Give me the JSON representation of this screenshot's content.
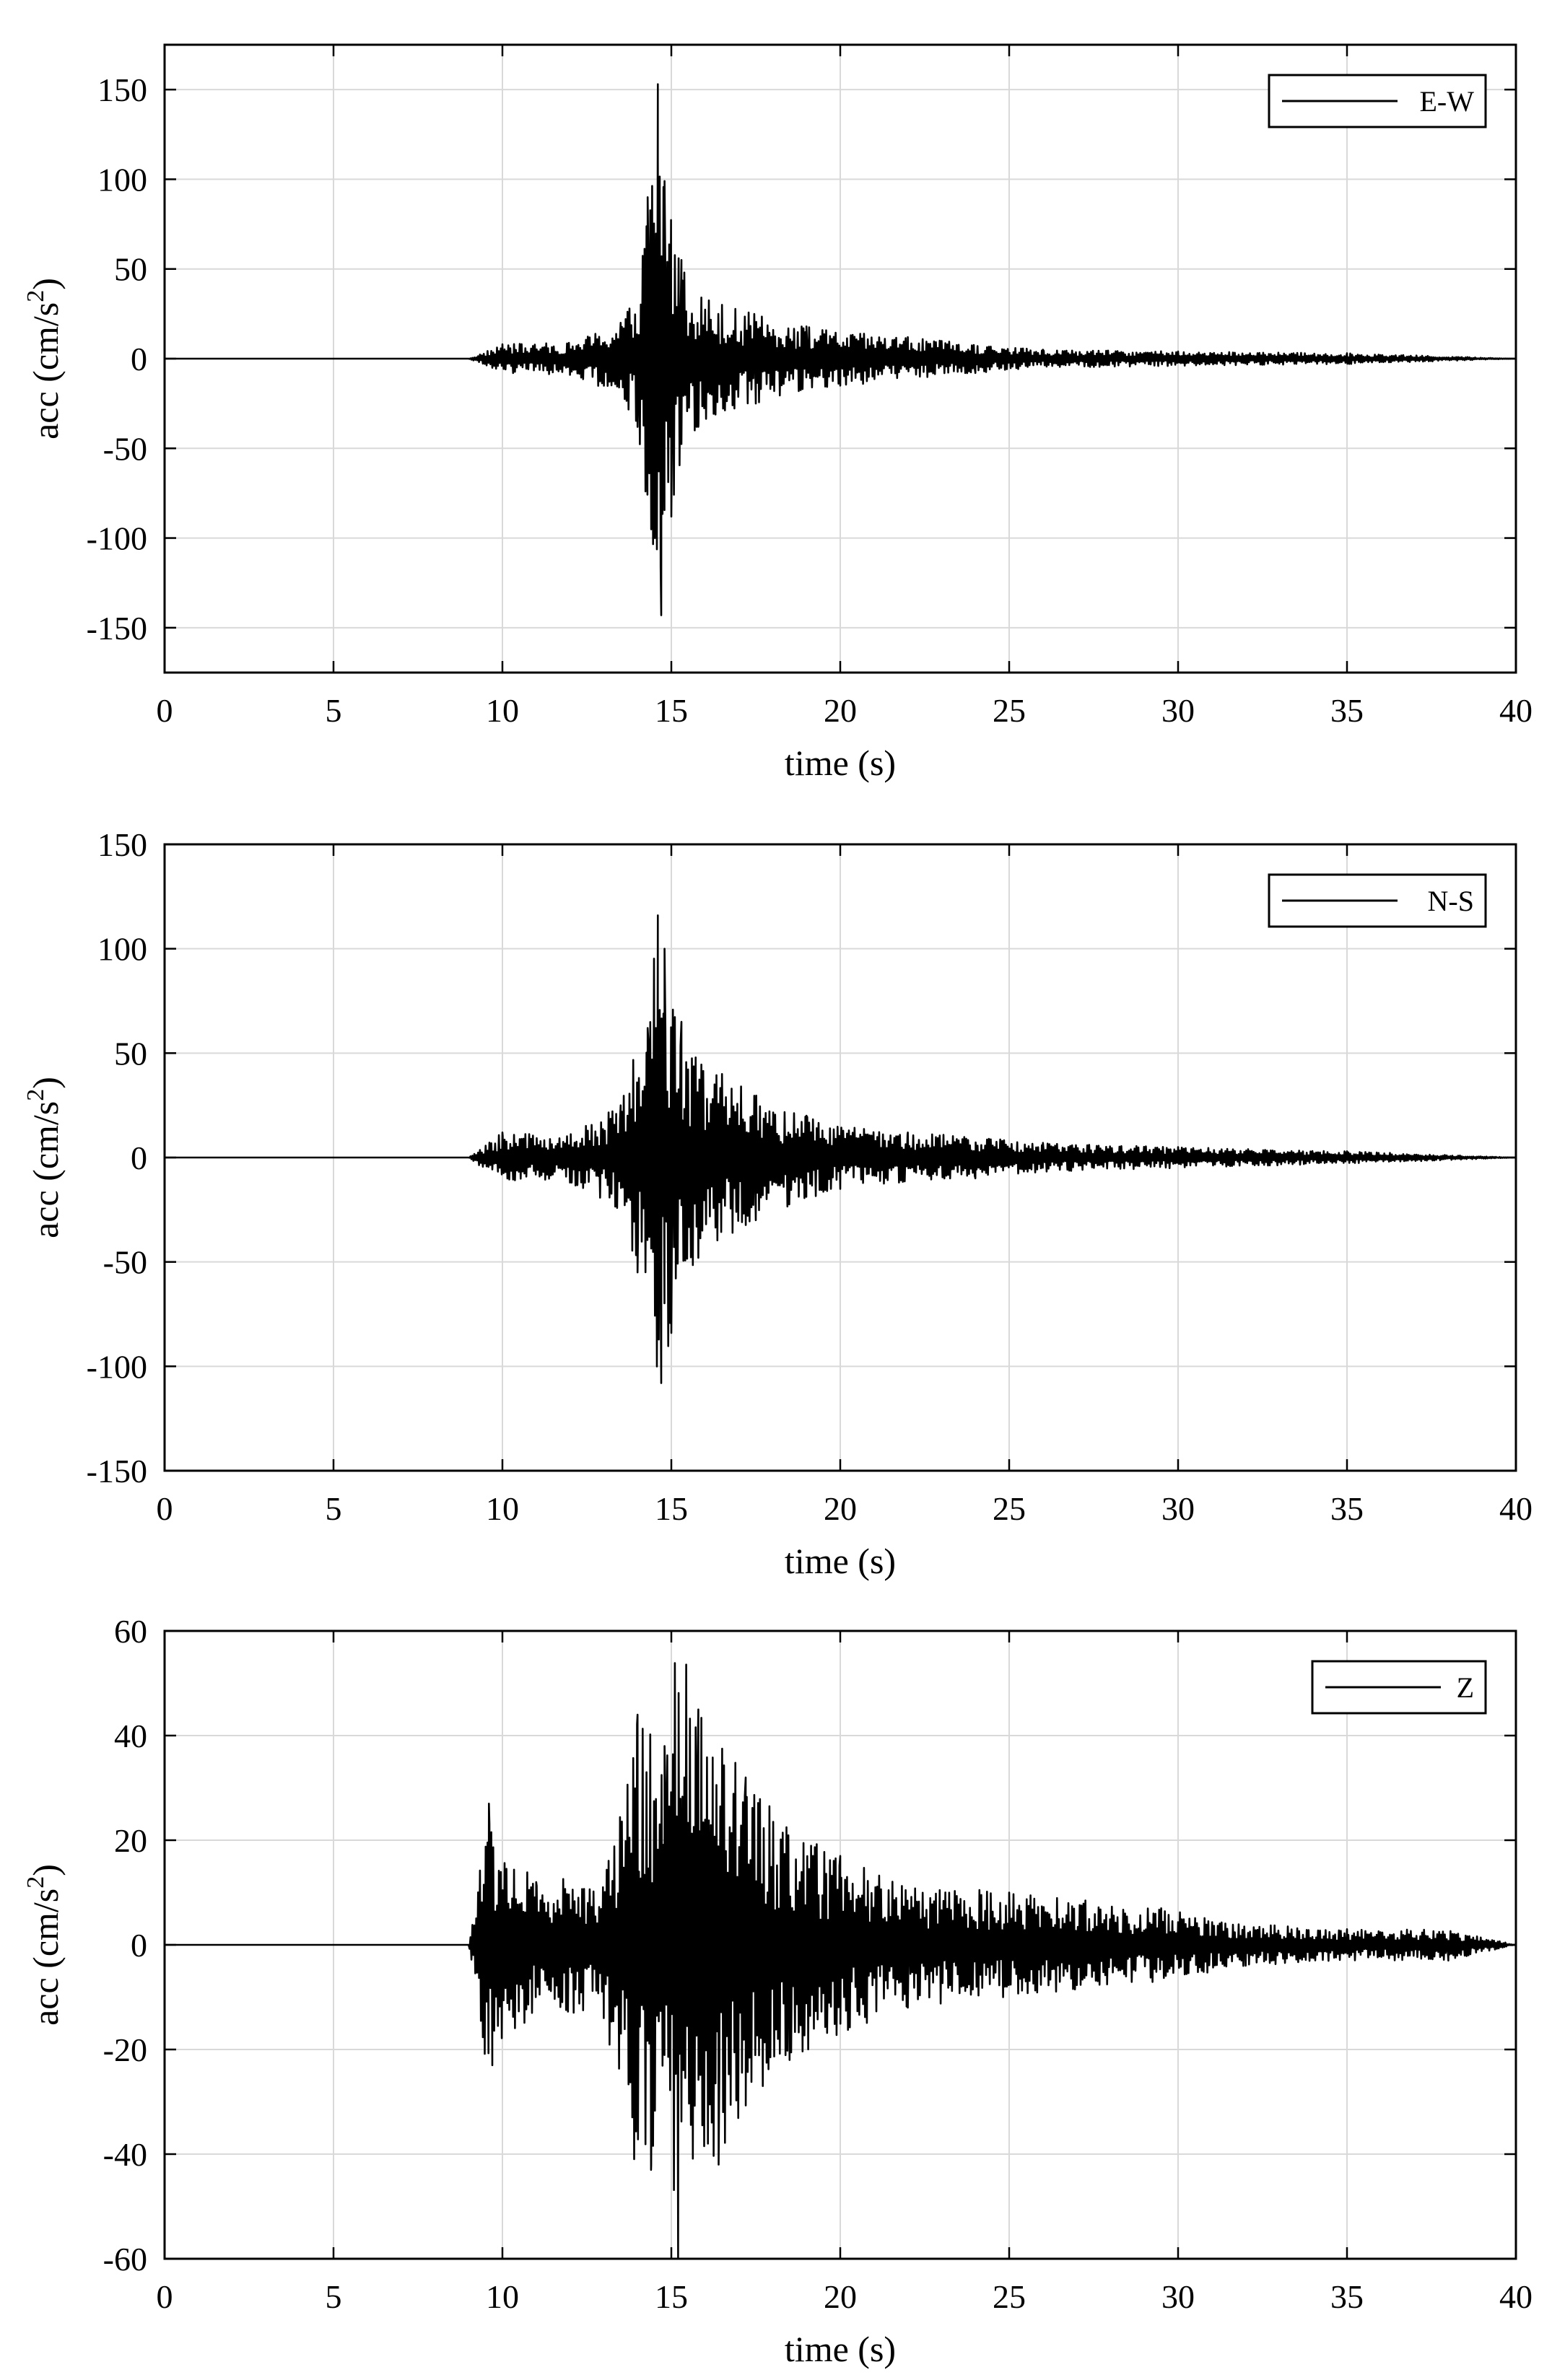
{
  "chart_data": [
    {
      "type": "line",
      "xlabel": "time (s)",
      "ylabel_main": "acc (cm/s",
      "ylabel_sup": "2",
      "ylabel_tail": ")",
      "xlim": [
        0,
        40
      ],
      "ylim": [
        -175,
        175
      ],
      "xticks": [
        0,
        5,
        10,
        15,
        20,
        25,
        30,
        35,
        40
      ],
      "xtick_labels": [
        "0",
        "5",
        "10",
        "15",
        "20",
        "25",
        "30",
        "35",
        "40"
      ],
      "yticks": [
        -150,
        -100,
        -50,
        0,
        50,
        100,
        150
      ],
      "ytick_labels": [
        "-150",
        "-100",
        "-50",
        "0",
        "50",
        "100",
        "150"
      ],
      "grid": true,
      "legend": "top-right",
      "series": [
        {
          "name": "E-W",
          "color": "#000000",
          "x": [
            0,
            9,
            10,
            12,
            13.5,
            14,
            14.3,
            14.6,
            14.7,
            14.8,
            15,
            15.3,
            15.8,
            16.5,
            17.5,
            19,
            20,
            22,
            24,
            26,
            30,
            35,
            40
          ],
          "y": [
            0,
            0,
            8,
            -9,
            20,
            -38,
            90,
            153,
            -143,
            99,
            -88,
            55,
            -38,
            30,
            -25,
            18,
            -15,
            12,
            -8,
            5,
            4,
            3,
            0
          ]
        }
      ]
    },
    {
      "type": "line",
      "xlabel": "time (s)",
      "ylabel_main": "acc (cm/s",
      "ylabel_sup": "2",
      "ylabel_tail": ")",
      "xlim": [
        0,
        40
      ],
      "ylim": [
        -150,
        150
      ],
      "xticks": [
        0,
        5,
        10,
        15,
        20,
        25,
        30,
        35,
        40
      ],
      "xtick_labels": [
        "0",
        "5",
        "10",
        "15",
        "20",
        "25",
        "30",
        "35",
        "40"
      ],
      "yticks": [
        -150,
        -100,
        -50,
        0,
        50,
        100,
        150
      ],
      "ytick_labels": [
        "-150",
        "-100",
        "-50",
        "0",
        "50",
        "100",
        "150"
      ],
      "grid": true,
      "legend": "top-right",
      "series": [
        {
          "name": "N-S",
          "color": "#000000",
          "x": [
            0,
            9,
            10,
            12,
            13.5,
            14,
            14.3,
            14.6,
            14.7,
            14.8,
            15,
            15.3,
            15.8,
            16.5,
            17.5,
            19,
            20,
            22,
            24,
            26,
            30,
            35,
            40
          ],
          "y": [
            0,
            0,
            12,
            -12,
            25,
            -55,
            62,
            116,
            -108,
            100,
            -84,
            65,
            -48,
            40,
            -30,
            20,
            -15,
            12,
            -10,
            7,
            5,
            3,
            0
          ]
        }
      ]
    },
    {
      "type": "line",
      "xlabel": "time (s)",
      "ylabel_main": "acc (cm/s",
      "ylabel_sup": "2",
      "ylabel_tail": ")",
      "xlim": [
        0,
        40
      ],
      "ylim": [
        -60,
        60
      ],
      "xticks": [
        0,
        5,
        10,
        15,
        20,
        25,
        30,
        35,
        40
      ],
      "xtick_labels": [
        "0",
        "5",
        "10",
        "15",
        "20",
        "25",
        "30",
        "35",
        "40"
      ],
      "yticks": [
        -60,
        -40,
        -20,
        0,
        20,
        40,
        60
      ],
      "ytick_labels": [
        "-60",
        "-40",
        "-20",
        "0",
        "20",
        "40",
        "60"
      ],
      "grid": true,
      "legend": "top-right",
      "series": [
        {
          "name": "Z",
          "color": "#000000",
          "x": [
            0,
            9,
            9.6,
            9.7,
            11,
            13,
            14,
            14.4,
            14.8,
            15.2,
            15.8,
            16.4,
            17.2,
            18.5,
            20,
            22,
            25,
            29.5,
            32,
            35,
            38,
            40
          ],
          "y": [
            0,
            0,
            27,
            -23,
            12,
            -14,
            44,
            -43,
            38,
            -60,
            45,
            -42,
            32,
            -22,
            17,
            -12,
            10,
            7,
            -4,
            3,
            -3,
            0
          ]
        }
      ]
    }
  ]
}
